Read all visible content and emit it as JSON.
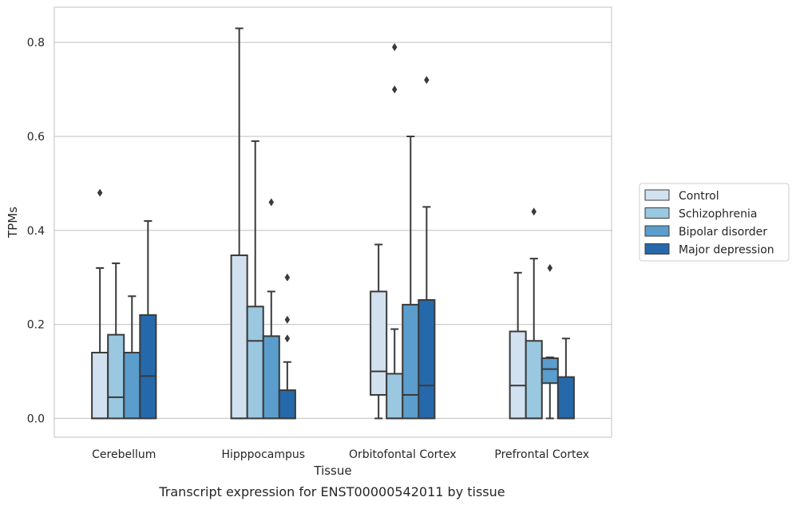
{
  "chart_data": {
    "type": "boxplot",
    "xlabel": "Tissue",
    "ylabel": "TPMs",
    "caption": "Transcript expression for ENST00000542011 by tissue",
    "categories": [
      "Cerebellum",
      "Hipppocampus",
      "Orbitofontal Cortex",
      "Prefrontal Cortex"
    ],
    "ylim": [
      -0.04,
      0.875
    ],
    "yticks": [
      0.0,
      0.2,
      0.4,
      0.6,
      0.8
    ],
    "ytick_labels": [
      "0.0",
      "0.2",
      "0.4",
      "0.6",
      "0.8"
    ],
    "grid": "horizontal",
    "legend_placement": "right, outside plot area",
    "series": [
      {
        "name": "Control",
        "color": "#d1e1f0",
        "boxes": [
          {
            "q1": 0.0,
            "median": 0.0,
            "q3": 0.14,
            "whisker_low": 0.0,
            "whisker_high": 0.32,
            "outliers": [
              0.48
            ]
          },
          {
            "q1": 0.0,
            "median": 0.0,
            "q3": 0.347,
            "whisker_low": 0.0,
            "whisker_high": 0.83,
            "outliers": []
          },
          {
            "q1": 0.05,
            "median": 0.1,
            "q3": 0.27,
            "whisker_low": 0.0,
            "whisker_high": 0.37,
            "outliers": []
          },
          {
            "q1": 0.0,
            "median": 0.07,
            "q3": 0.185,
            "whisker_low": 0.0,
            "whisker_high": 0.31,
            "outliers": []
          }
        ]
      },
      {
        "name": "Schizophrenia",
        "color": "#9ac8e0",
        "boxes": [
          {
            "q1": 0.0,
            "median": 0.045,
            "q3": 0.178,
            "whisker_low": 0.0,
            "whisker_high": 0.33,
            "outliers": []
          },
          {
            "q1": 0.0,
            "median": 0.165,
            "q3": 0.238,
            "whisker_low": 0.0,
            "whisker_high": 0.59,
            "outliers": []
          },
          {
            "q1": 0.0,
            "median": 0.0,
            "q3": 0.095,
            "whisker_low": 0.0,
            "whisker_high": 0.19,
            "outliers": [
              0.7,
              0.79
            ]
          },
          {
            "q1": 0.0,
            "median": 0.0,
            "q3": 0.165,
            "whisker_low": 0.0,
            "whisker_high": 0.34,
            "outliers": [
              0.44
            ]
          }
        ]
      },
      {
        "name": "Bipolar disorder",
        "color": "#5b9dcc",
        "boxes": [
          {
            "q1": 0.0,
            "median": 0.0,
            "q3": 0.14,
            "whisker_low": 0.0,
            "whisker_high": 0.26,
            "outliers": []
          },
          {
            "q1": 0.0,
            "median": 0.0,
            "q3": 0.175,
            "whisker_low": 0.0,
            "whisker_high": 0.27,
            "outliers": [
              0.46
            ]
          },
          {
            "q1": 0.0,
            "median": 0.05,
            "q3": 0.242,
            "whisker_low": 0.0,
            "whisker_high": 0.6,
            "outliers": []
          },
          {
            "q1": 0.075,
            "median": 0.105,
            "q3": 0.128,
            "whisker_low": 0.0,
            "whisker_high": 0.13,
            "outliers": [
              0.32
            ]
          }
        ]
      },
      {
        "name": "Major depression",
        "color": "#2669ab",
        "boxes": [
          {
            "q1": 0.0,
            "median": 0.09,
            "q3": 0.22,
            "whisker_low": 0.0,
            "whisker_high": 0.42,
            "outliers": []
          },
          {
            "q1": 0.0,
            "median": 0.0,
            "q3": 0.06,
            "whisker_low": 0.0,
            "whisker_high": 0.12,
            "outliers": [
              0.17,
              0.21,
              0.3
            ]
          },
          {
            "q1": 0.0,
            "median": 0.07,
            "q3": 0.252,
            "whisker_low": 0.0,
            "whisker_high": 0.45,
            "outliers": [
              0.72
            ]
          },
          {
            "q1": 0.0,
            "median": 0.0,
            "q3": 0.088,
            "whisker_low": 0.0,
            "whisker_high": 0.17,
            "outliers": []
          }
        ]
      }
    ]
  }
}
